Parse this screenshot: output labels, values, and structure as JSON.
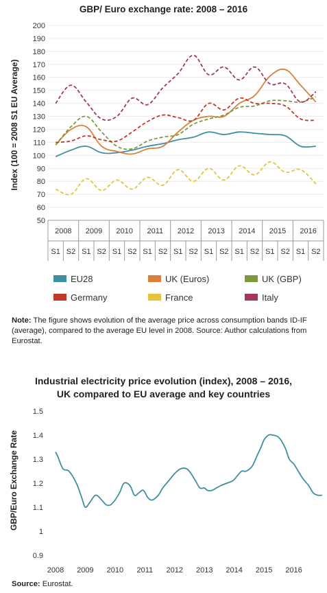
{
  "chart1": {
    "title": "GBP/ Euro exchange rate: 2008 – 2016",
    "ylabel": "Index (100 = 2008 S1 EU Average)",
    "years": [
      "2008",
      "2009",
      "2010",
      "2011",
      "2012",
      "2013",
      "2014",
      "2015",
      "2016"
    ],
    "semester_labels": [
      "S1",
      "S2"
    ],
    "legend": [
      {
        "label": "EU28",
        "color": "#3d8fa1"
      },
      {
        "label": "UK (Euros)",
        "color": "#d9803c"
      },
      {
        "label": "UK (GBP)",
        "color": "#7c9a3a"
      },
      {
        "label": "Germany",
        "color": "#c0392b"
      },
      {
        "label": "France",
        "color": "#e8c23a"
      },
      {
        "label": "Italy",
        "color": "#a3375e"
      }
    ],
    "note_label": "Note:",
    "note_text": " The figure shows evolution of the average price across consumption bands ID-IF (average), compared to the average EU level in 2008. Source: Author calculations from Eurostat."
  },
  "chart2": {
    "title_line1": "Industrial electricity price evolution (index), 2008 – 2016,",
    "title_line2": "UK compared to EU average and key countries",
    "ylabel": "GBP/Euro Exchange Rate",
    "source_label": "Source:",
    "source_text": " Eurostat."
  },
  "chart_data": [
    {
      "type": "line",
      "title": "GBP/ Euro exchange rate: 2008 – 2016",
      "ylabel": "Index (100 = 2008 S1 EU Average)",
      "ylim": [
        50,
        200
      ],
      "yticks": [
        50,
        60,
        70,
        80,
        90,
        100,
        110,
        120,
        130,
        140,
        150,
        160,
        170,
        180,
        190,
        200
      ],
      "x": [
        2008.0,
        2008.5,
        2009.0,
        2009.5,
        2010.0,
        2010.5,
        2011.0,
        2011.5,
        2012.0,
        2012.5,
        2013.0,
        2013.5,
        2014.0,
        2014.5,
        2015.0,
        2015.5,
        2016.0,
        2016.5
      ],
      "categories": [
        "2008 S1",
        "2008 S2",
        "2009 S1",
        "2009 S2",
        "2010 S1",
        "2010 S2",
        "2011 S1",
        "2011 S2",
        "2012 S1",
        "2012 S2",
        "2013 S1",
        "2013 S2",
        "2014 S1",
        "2014 S2",
        "2015 S1",
        "2015 S2",
        "2016 S1",
        "2016 S2"
      ],
      "series": [
        {
          "name": "EU28",
          "color": "#3d8fa1",
          "dashed": false,
          "values": [
            99,
            104,
            107,
            102,
            102,
            104,
            107,
            109,
            112,
            114,
            118,
            116,
            118,
            117,
            116,
            115,
            107,
            107
          ]
        },
        {
          "name": "UK (Euros)",
          "color": "#d9803c",
          "dashed": false,
          "values": [
            108,
            120,
            122,
            107,
            103,
            101,
            105,
            107,
            118,
            127,
            130,
            130,
            140,
            146,
            161,
            166,
            154,
            141
          ]
        },
        {
          "name": "UK (GBP)",
          "color": "#7c9a3a",
          "dashed": true,
          "values": [
            108,
            122,
            130,
            118,
            107,
            105,
            111,
            114,
            116,
            124,
            128,
            131,
            137,
            138,
            142,
            142,
            141,
            145
          ]
        },
        {
          "name": "Germany",
          "color": "#c0392b",
          "dashed": true,
          "values": [
            110,
            111,
            115,
            112,
            111,
            118,
            126,
            131,
            129,
            127,
            140,
            135,
            144,
            140,
            140,
            138,
            128,
            127
          ]
        },
        {
          "name": "France",
          "color": "#e8c23a",
          "dashed": true,
          "values": [
            74,
            70,
            82,
            73,
            81,
            74,
            83,
            77,
            89,
            80,
            90,
            81,
            92,
            85,
            95,
            87,
            89,
            78
          ]
        },
        {
          "name": "Italy",
          "color": "#a3375e",
          "dashed": true,
          "values": [
            140,
            154,
            141,
            128,
            130,
            144,
            139,
            152,
            163,
            177,
            162,
            168,
            158,
            168,
            155,
            155,
            141,
            149
          ]
        }
      ]
    },
    {
      "type": "line",
      "title": "Industrial electricity price evolution (index), 2008 – 2016, UK compared to EU average and key countries",
      "ylabel": "GBP/Euro Exchange Rate",
      "ylim": [
        0.9,
        1.5
      ],
      "yticks": [
        0.9,
        1,
        1.1,
        1.2,
        1.3,
        1.4,
        1.5
      ],
      "xticks": [
        "2008",
        "2009",
        "2010",
        "2011",
        "2012",
        "2013",
        "2014",
        "2015",
        "2016"
      ],
      "x": [
        2008.0,
        2008.08,
        2008.25,
        2008.45,
        2008.7,
        2008.88,
        2009.0,
        2009.15,
        2009.35,
        2009.55,
        2009.7,
        2009.85,
        2010.0,
        2010.15,
        2010.3,
        2010.5,
        2010.65,
        2010.8,
        2010.95,
        2011.1,
        2011.25,
        2011.45,
        2011.6,
        2011.8,
        2012.0,
        2012.2,
        2012.4,
        2012.55,
        2012.7,
        2012.85,
        2013.0,
        2013.1,
        2013.25,
        2013.4,
        2013.55,
        2013.75,
        2013.95,
        2014.1,
        2014.25,
        2014.4,
        2014.6,
        2014.75,
        2014.9,
        2015.0,
        2015.15,
        2015.3,
        2015.5,
        2015.7,
        2015.85,
        2016.0,
        2016.15,
        2016.3,
        2016.5,
        2016.65,
        2016.8,
        2016.95
      ],
      "series": [
        {
          "name": "",
          "color": "#3d8fa1",
          "values": [
            1.33,
            1.31,
            1.26,
            1.25,
            1.2,
            1.14,
            1.1,
            1.12,
            1.15,
            1.13,
            1.11,
            1.11,
            1.13,
            1.16,
            1.2,
            1.19,
            1.15,
            1.16,
            1.17,
            1.14,
            1.13,
            1.15,
            1.18,
            1.21,
            1.24,
            1.26,
            1.26,
            1.24,
            1.21,
            1.18,
            1.18,
            1.17,
            1.17,
            1.18,
            1.19,
            1.2,
            1.21,
            1.23,
            1.25,
            1.25,
            1.27,
            1.31,
            1.35,
            1.38,
            1.4,
            1.4,
            1.39,
            1.35,
            1.3,
            1.28,
            1.25,
            1.22,
            1.19,
            1.16,
            1.15,
            1.15
          ]
        }
      ]
    }
  ]
}
